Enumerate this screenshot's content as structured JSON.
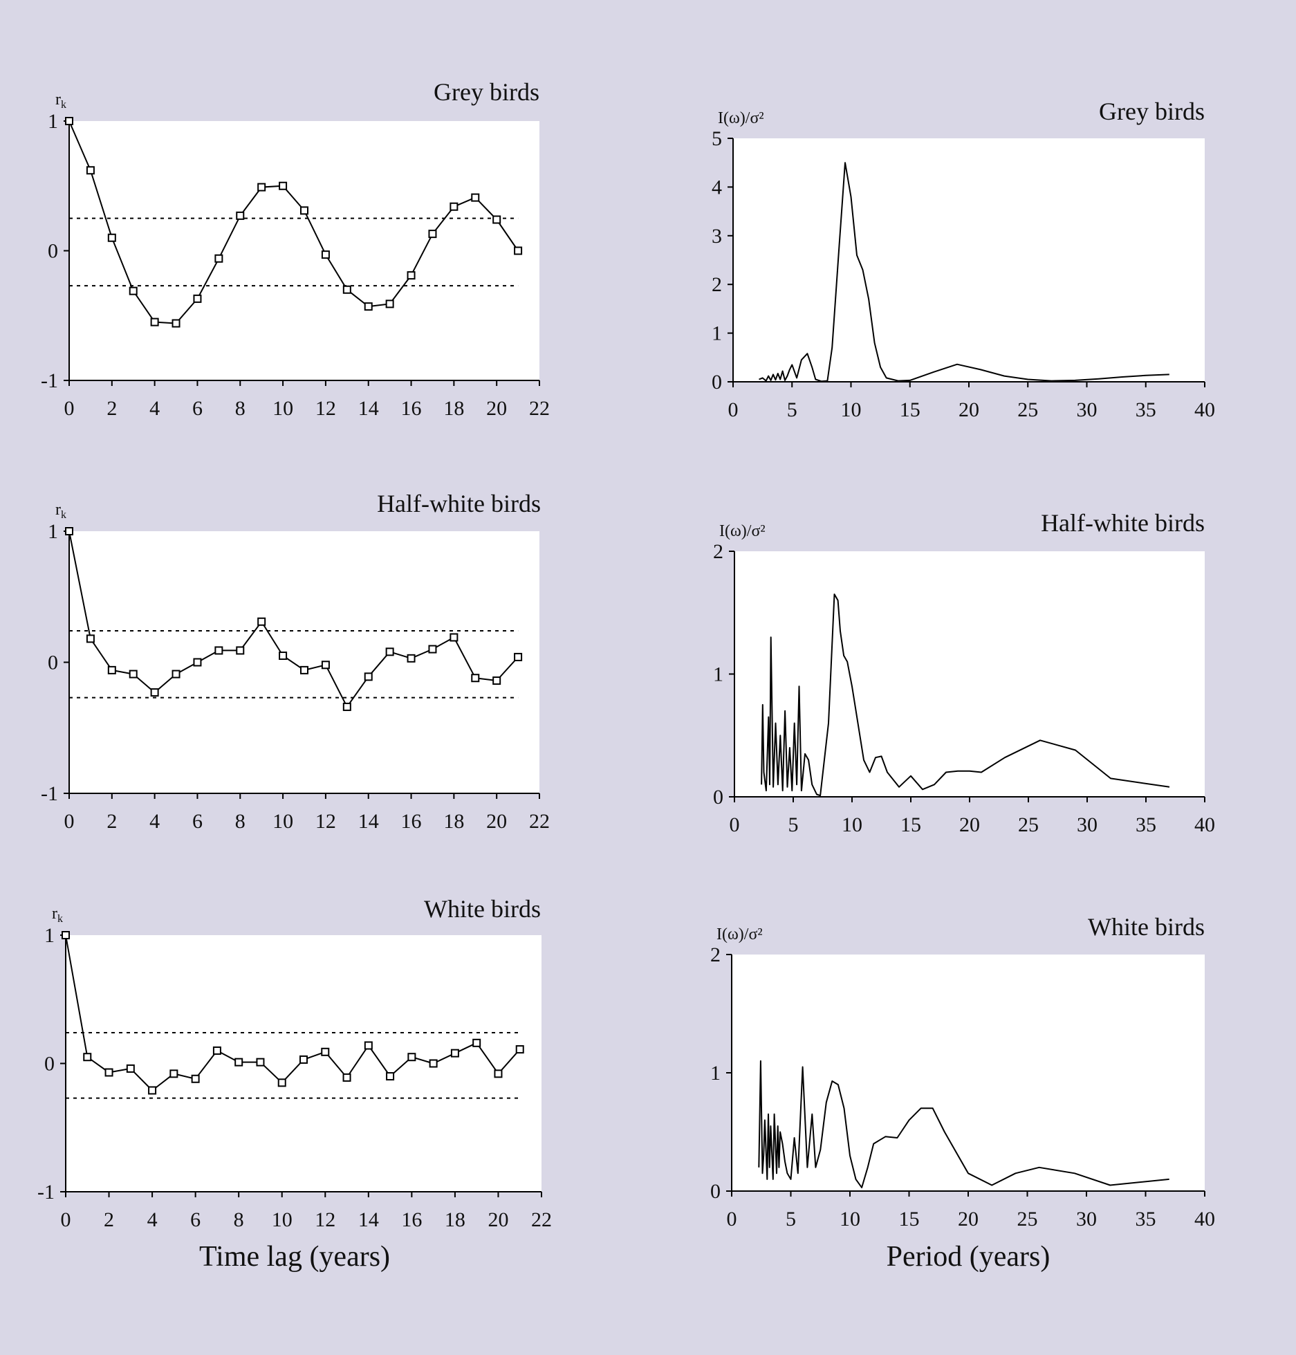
{
  "figure": {
    "left_xlabel": "Time lag (years)",
    "right_xlabel": "Period (years)"
  },
  "chart_data": [
    {
      "type": "line",
      "panel": "acf",
      "title": "Grey birds",
      "ylabel": "r_k",
      "xlabel": "Time lag (years)",
      "xlim": [
        0,
        22
      ],
      "ylim": [
        -1,
        1
      ],
      "xticks": [
        "0",
        "2",
        "4",
        "6",
        "8",
        "10",
        "12",
        "14",
        "16",
        "18",
        "20",
        "22"
      ],
      "yticks": [
        "-1",
        "0",
        "1"
      ],
      "significance_bounds": [
        0.25,
        -0.27
      ],
      "x": [
        0,
        1,
        2,
        3,
        4,
        5,
        6,
        7,
        8,
        9,
        10,
        11,
        12,
        13,
        14,
        15,
        16,
        17,
        18,
        19,
        20,
        21
      ],
      "values": [
        1.0,
        0.62,
        0.1,
        -0.31,
        -0.55,
        -0.56,
        -0.37,
        -0.06,
        0.27,
        0.49,
        0.5,
        0.31,
        -0.03,
        -0.3,
        -0.43,
        -0.41,
        -0.19,
        0.13,
        0.34,
        0.41,
        0.24,
        0.0
      ],
      "markers": true
    },
    {
      "type": "line",
      "panel": "acf",
      "title": "Half-white birds",
      "ylabel": "r_k",
      "xlabel": "Time lag (years)",
      "xlim": [
        0,
        22
      ],
      "ylim": [
        -1,
        1
      ],
      "xticks": [
        "0",
        "2",
        "4",
        "6",
        "8",
        "10",
        "12",
        "14",
        "16",
        "18",
        "20",
        "22"
      ],
      "yticks": [
        "-1",
        "0",
        "1"
      ],
      "significance_bounds": [
        0.24,
        -0.27
      ],
      "x": [
        0,
        1,
        2,
        3,
        4,
        5,
        6,
        7,
        8,
        9,
        10,
        11,
        12,
        13,
        14,
        15,
        16,
        17,
        18,
        19,
        20,
        21
      ],
      "values": [
        1.0,
        0.18,
        -0.06,
        -0.09,
        -0.23,
        -0.09,
        0.0,
        0.09,
        0.09,
        0.31,
        0.05,
        -0.06,
        -0.02,
        -0.34,
        -0.11,
        0.08,
        0.03,
        0.1,
        0.19,
        -0.12,
        -0.14,
        0.04
      ],
      "markers": true
    },
    {
      "type": "line",
      "panel": "acf",
      "title": "White birds",
      "ylabel": "r_k",
      "xlabel": "Time lag (years)",
      "xlim": [
        0,
        22
      ],
      "ylim": [
        -1,
        1
      ],
      "xticks": [
        "0",
        "2",
        "4",
        "6",
        "8",
        "10",
        "12",
        "14",
        "16",
        "18",
        "20",
        "22"
      ],
      "yticks": [
        "-1",
        "0",
        "1"
      ],
      "significance_bounds": [
        0.24,
        -0.27
      ],
      "x": [
        0,
        1,
        2,
        3,
        4,
        5,
        6,
        7,
        8,
        9,
        10,
        11,
        12,
        13,
        14,
        15,
        16,
        17,
        18,
        19,
        20,
        21
      ],
      "values": [
        1.0,
        0.05,
        -0.07,
        -0.04,
        -0.21,
        -0.08,
        -0.12,
        0.1,
        0.01,
        0.01,
        -0.15,
        0.03,
        0.09,
        -0.11,
        0.14,
        -0.1,
        0.05,
        0.0,
        0.08,
        0.16,
        -0.08,
        0.11
      ],
      "markers": true
    },
    {
      "type": "line",
      "panel": "periodogram",
      "title": "Grey birds",
      "ylabel": "I(ω)/σ²",
      "xlabel": "Period (years)",
      "xlim": [
        0,
        40
      ],
      "ylim": [
        0,
        5
      ],
      "xticks": [
        "0",
        "5",
        "10",
        "15",
        "20",
        "25",
        "30",
        "35",
        "40"
      ],
      "yticks": [
        "0",
        "1",
        "2",
        "3",
        "4",
        "5"
      ],
      "x": [
        2.2,
        2.5,
        2.8,
        3.0,
        3.2,
        3.4,
        3.6,
        3.8,
        4.0,
        4.2,
        4.4,
        4.6,
        4.8,
        5.0,
        5.4,
        5.8,
        6.3,
        6.7,
        7.0,
        7.5,
        8.0,
        8.4,
        9.0,
        9.5,
        10.0,
        10.5,
        11.0,
        11.5,
        12.0,
        12.5,
        13.0,
        14.0,
        15.0,
        17.0,
        19.0,
        21.0,
        23.0,
        25.0,
        27.0,
        29.0,
        31.0,
        33.0,
        35.0,
        37.0
      ],
      "values": [
        0.05,
        0.08,
        0.02,
        0.12,
        0.03,
        0.15,
        0.04,
        0.17,
        0.05,
        0.22,
        0.03,
        0.12,
        0.25,
        0.35,
        0.08,
        0.45,
        0.58,
        0.3,
        0.05,
        0.01,
        0.02,
        0.7,
        2.8,
        4.5,
        3.8,
        2.6,
        2.3,
        1.7,
        0.8,
        0.3,
        0.08,
        0.02,
        0.03,
        0.2,
        0.36,
        0.25,
        0.12,
        0.05,
        0.02,
        0.03,
        0.06,
        0.1,
        0.13,
        0.15
      ]
    },
    {
      "type": "line",
      "panel": "periodogram",
      "title": "Half-white birds",
      "ylabel": "I(ω)/σ²",
      "xlabel": "Period (years)",
      "xlim": [
        0,
        40
      ],
      "ylim": [
        0,
        2
      ],
      "xticks": [
        "0",
        "5",
        "10",
        "15",
        "20",
        "25",
        "30",
        "35",
        "40"
      ],
      "yticks": [
        "0",
        "1",
        "2"
      ],
      "x": [
        2.3,
        2.4,
        2.5,
        2.7,
        2.9,
        3.0,
        3.1,
        3.3,
        3.5,
        3.7,
        3.9,
        4.1,
        4.3,
        4.5,
        4.7,
        4.9,
        5.1,
        5.3,
        5.5,
        5.7,
        6.0,
        6.3,
        6.6,
        7.0,
        7.3,
        8.0,
        8.5,
        8.8,
        9.0,
        9.3,
        9.6,
        10.0,
        10.5,
        11.0,
        11.5,
        12.0,
        12.5,
        13.0,
        14.0,
        15.0,
        16.0,
        17.0,
        18.0,
        19.0,
        20.0,
        21.0,
        23.0,
        26.0,
        29.0,
        32.0,
        37.0
      ],
      "values": [
        0.1,
        0.75,
        0.2,
        0.05,
        0.65,
        0.1,
        1.3,
        0.08,
        0.6,
        0.1,
        0.5,
        0.05,
        0.7,
        0.08,
        0.4,
        0.05,
        0.6,
        0.1,
        0.9,
        0.05,
        0.35,
        0.3,
        0.1,
        0.02,
        0.01,
        0.6,
        1.65,
        1.6,
        1.35,
        1.15,
        1.1,
        0.9,
        0.6,
        0.3,
        0.2,
        0.32,
        0.33,
        0.2,
        0.08,
        0.17,
        0.06,
        0.1,
        0.2,
        0.21,
        0.21,
        0.2,
        0.32,
        0.46,
        0.38,
        0.15,
        0.08
      ]
    },
    {
      "type": "line",
      "panel": "periodogram",
      "title": "White birds",
      "ylabel": "I(ω)/σ²",
      "xlabel": "Period (years)",
      "xlim": [
        0,
        40
      ],
      "ylim": [
        0,
        2
      ],
      "xticks": [
        "0",
        "5",
        "10",
        "15",
        "20",
        "25",
        "30",
        "35",
        "40"
      ],
      "yticks": [
        "0",
        "1",
        "2"
      ],
      "x": [
        2.3,
        2.45,
        2.6,
        2.7,
        2.8,
        3.0,
        3.1,
        3.2,
        3.3,
        3.5,
        3.6,
        3.8,
        3.9,
        4.0,
        4.1,
        4.3,
        4.5,
        4.7,
        5.0,
        5.3,
        5.6,
        6.0,
        6.4,
        6.8,
        7.1,
        7.5,
        8.0,
        8.5,
        9.0,
        9.5,
        10.0,
        10.5,
        11.0,
        11.5,
        12.0,
        13.0,
        14.0,
        15.0,
        16.0,
        17.0,
        18.0,
        20.0,
        22.0,
        24.0,
        26.0,
        29.0,
        32.0,
        37.0
      ],
      "values": [
        0.2,
        1.1,
        0.15,
        0.3,
        0.6,
        0.1,
        0.65,
        0.2,
        0.55,
        0.1,
        0.65,
        0.15,
        0.55,
        0.2,
        0.5,
        0.4,
        0.25,
        0.15,
        0.1,
        0.45,
        0.15,
        1.05,
        0.2,
        0.65,
        0.2,
        0.35,
        0.75,
        0.93,
        0.9,
        0.7,
        0.3,
        0.1,
        0.03,
        0.2,
        0.4,
        0.46,
        0.45,
        0.6,
        0.7,
        0.7,
        0.5,
        0.15,
        0.05,
        0.15,
        0.2,
        0.15,
        0.05,
        0.1
      ]
    }
  ]
}
